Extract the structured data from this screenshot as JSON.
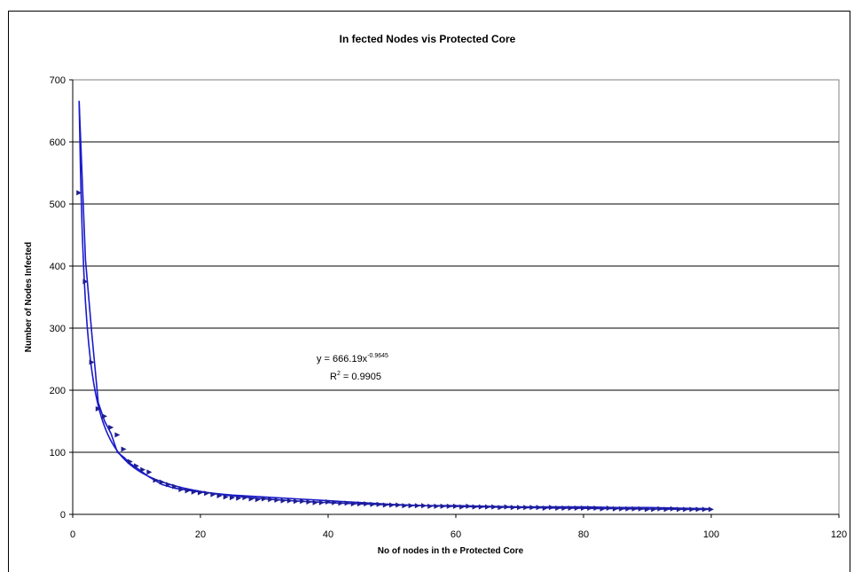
{
  "chart_data": {
    "type": "scatter",
    "title": "In fected Nodes vis Protected Core",
    "xlabel": "No of nodes in th e Protected Core",
    "ylabel": "Number of Nodes Infected",
    "xlim": [
      0,
      120
    ],
    "ylim": [
      0,
      700
    ],
    "x_ticks": [
      0,
      20,
      40,
      60,
      80,
      100,
      120
    ],
    "y_ticks": [
      0,
      100,
      200,
      300,
      400,
      500,
      600,
      700
    ],
    "grid": "horizontal",
    "marker_color": "#1f1f8f",
    "line_color": "#1a1acc",
    "series": [
      {
        "x": [
          1,
          2,
          3,
          4,
          5,
          6,
          7,
          8,
          9,
          10,
          11,
          12,
          13,
          14,
          15,
          16,
          17,
          18,
          19,
          20,
          21,
          22,
          23,
          24,
          25,
          26,
          27,
          28,
          29,
          30,
          31,
          32,
          33,
          34,
          35,
          36,
          37,
          38,
          39,
          40,
          41,
          42,
          43,
          44,
          45,
          46,
          47,
          48,
          49,
          50,
          51,
          52,
          53,
          54,
          55,
          56,
          57,
          58,
          59,
          60,
          61,
          62,
          63,
          64,
          65,
          66,
          67,
          68,
          69,
          70,
          71,
          72,
          73,
          74,
          75,
          76,
          77,
          78,
          79,
          80,
          81,
          82,
          83,
          84,
          85,
          86,
          87,
          88,
          89,
          90,
          91,
          92,
          93,
          94,
          95,
          96,
          97,
          98,
          99,
          100
        ],
        "y": [
          518,
          375,
          245,
          170,
          158,
          140,
          128,
          105,
          85,
          78,
          72,
          68,
          55,
          52,
          48,
          45,
          40,
          38,
          36,
          35,
          34,
          32,
          30,
          28,
          27,
          26,
          27,
          25,
          24,
          25,
          24,
          23,
          22,
          22,
          21,
          21,
          20,
          19,
          19,
          20,
          19,
          18,
          18,
          17,
          17,
          17,
          16,
          16,
          15,
          15,
          15,
          14,
          14,
          14,
          14,
          13,
          13,
          13,
          13,
          13,
          12,
          13,
          12,
          12,
          12,
          12,
          11,
          12,
          11,
          11,
          11,
          11,
          11,
          10,
          11,
          10,
          10,
          10,
          10,
          10,
          10,
          10,
          9,
          10,
          9,
          9,
          9,
          9,
          9,
          8,
          8,
          9,
          8,
          9,
          8,
          8,
          8,
          8,
          8,
          8
        ]
      }
    ],
    "connecting_line": {
      "x": [
        1,
        2,
        3,
        4,
        5,
        6,
        7,
        8,
        9,
        10,
        12,
        14,
        16,
        18,
        20,
        25,
        30,
        35,
        40,
        45,
        50,
        55,
        60,
        65,
        70,
        75,
        80,
        85,
        90,
        95,
        100
      ],
      "y": [
        665,
        410,
        290,
        180,
        150,
        130,
        100,
        92,
        82,
        75,
        60,
        48,
        42,
        39,
        36,
        31,
        28,
        25,
        22,
        19,
        16,
        14,
        14,
        13,
        12,
        12,
        12,
        11,
        11,
        10,
        9
      ]
    },
    "trendline": {
      "equation": "y = 666.19x",
      "exponent": "-0.9645",
      "coefficient": 666.19,
      "power": -0.9645,
      "r2_prefix": "R",
      "r2_sup": "2",
      "r2_value": " = 0.9905"
    }
  }
}
